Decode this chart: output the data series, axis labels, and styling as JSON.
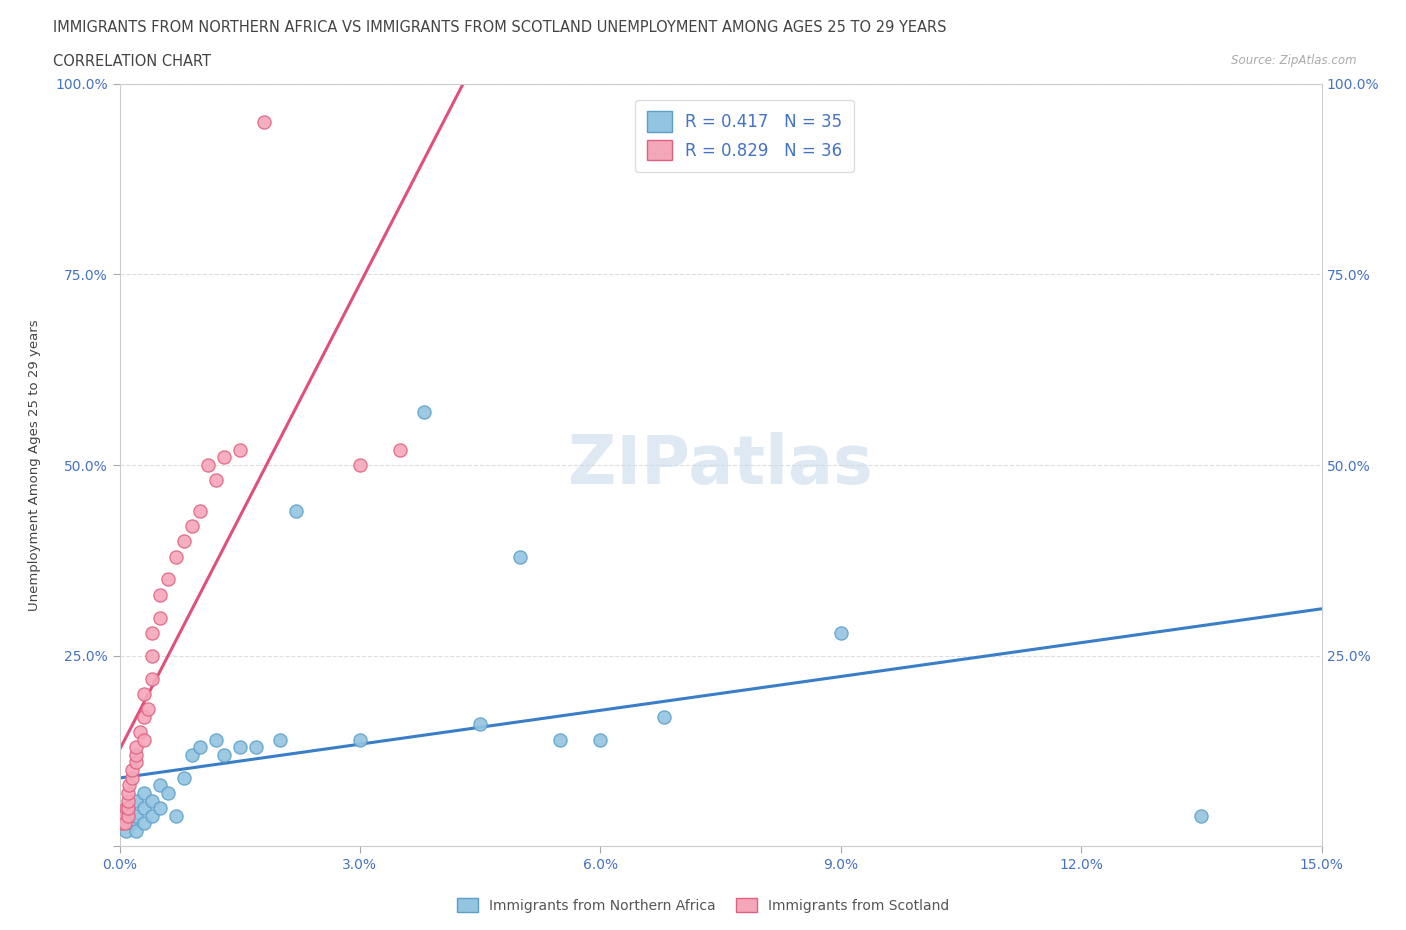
{
  "title_line1": "IMMIGRANTS FROM NORTHERN AFRICA VS IMMIGRANTS FROM SCOTLAND UNEMPLOYMENT AMONG AGES 25 TO 29 YEARS",
  "title_line2": "CORRELATION CHART",
  "source": "Source: ZipAtlas.com",
  "ylabel": "Unemployment Among Ages 25 to 29 years",
  "xlim": [
    0.0,
    0.15
  ],
  "ylim": [
    0.0,
    1.0
  ],
  "xticks": [
    0.0,
    0.03,
    0.06,
    0.09,
    0.12,
    0.15
  ],
  "xticklabels": [
    "0.0%",
    "3.0%",
    "6.0%",
    "9.0%",
    "12.0%",
    "15.0%"
  ],
  "yticks": [
    0.0,
    0.25,
    0.5,
    0.75,
    1.0
  ],
  "yticklabels_left": [
    "",
    "25.0%",
    "50.0%",
    "75.0%",
    "100.0%"
  ],
  "yticklabels_right": [
    "",
    "25.0%",
    "50.0%",
    "75.0%",
    "100.0%"
  ],
  "blue_color": "#93c4e0",
  "pink_color": "#f4a7b9",
  "blue_edge_color": "#5b9ec9",
  "pink_edge_color": "#e06080",
  "blue_line_color": "#3a7ec8",
  "pink_line_color": "#e0507a",
  "R_blue": 0.417,
  "N_blue": 35,
  "R_pink": 0.829,
  "N_pink": 36,
  "label_blue": "Immigrants from Northern Africa",
  "label_pink": "Immigrants from Scotland",
  "watermark": "ZIPatlas",
  "blue_x": [
    0.0005,
    0.0008,
    0.001,
    0.001,
    0.0015,
    0.002,
    0.002,
    0.002,
    0.003,
    0.003,
    0.003,
    0.004,
    0.004,
    0.005,
    0.005,
    0.006,
    0.007,
    0.008,
    0.009,
    0.01,
    0.012,
    0.013,
    0.015,
    0.017,
    0.02,
    0.022,
    0.03,
    0.038,
    0.045,
    0.05,
    0.055,
    0.06,
    0.068,
    0.09,
    0.135
  ],
  "blue_y": [
    0.03,
    0.02,
    0.04,
    0.05,
    0.03,
    0.04,
    0.06,
    0.02,
    0.05,
    0.03,
    0.07,
    0.04,
    0.06,
    0.05,
    0.08,
    0.07,
    0.04,
    0.09,
    0.12,
    0.13,
    0.14,
    0.12,
    0.13,
    0.13,
    0.14,
    0.44,
    0.14,
    0.57,
    0.16,
    0.38,
    0.14,
    0.14,
    0.17,
    0.28,
    0.04
  ],
  "pink_x": [
    0.0003,
    0.0005,
    0.0007,
    0.0008,
    0.001,
    0.001,
    0.001,
    0.001,
    0.0012,
    0.0015,
    0.0015,
    0.002,
    0.002,
    0.002,
    0.0025,
    0.003,
    0.003,
    0.003,
    0.0035,
    0.004,
    0.004,
    0.004,
    0.005,
    0.005,
    0.006,
    0.007,
    0.008,
    0.009,
    0.01,
    0.011,
    0.012,
    0.013,
    0.015,
    0.018,
    0.03,
    0.035
  ],
  "pink_y": [
    0.03,
    0.04,
    0.03,
    0.05,
    0.04,
    0.05,
    0.06,
    0.07,
    0.08,
    0.09,
    0.1,
    0.11,
    0.12,
    0.13,
    0.15,
    0.14,
    0.17,
    0.2,
    0.18,
    0.22,
    0.25,
    0.28,
    0.3,
    0.33,
    0.35,
    0.38,
    0.4,
    0.42,
    0.44,
    0.5,
    0.48,
    0.51,
    0.52,
    0.95,
    0.5,
    0.52
  ]
}
